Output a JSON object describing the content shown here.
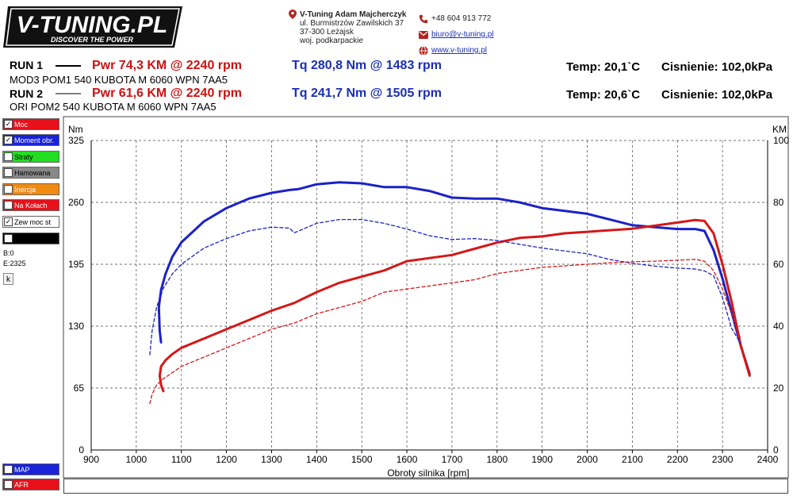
{
  "header": {
    "logo_text": "V-TUNING.PL",
    "logo_tagline": "DISCOVER THE POWER",
    "company": "V-Tuning Adam Majcherczyk",
    "address_lines": [
      "ul. Burmistrzów Zawilskich 37",
      "37-300 Leżajsk",
      "woj. podkarpackie"
    ],
    "phone": "+48 604 913 772",
    "email": "biuro@v-tuning.pl",
    "website": "www.v-tuning.pl"
  },
  "runs": [
    {
      "label": "RUN 1",
      "desc": "MOD3 POM1 540 KUBOTA M 6060 WPN 7AA5",
      "pwr": "Pwr  74,3 KM @ 2240 rpm",
      "tq": "Tq 280,8 Nm @ 1483 rpm",
      "temp": "Temp: 20,1`C",
      "pressure": "Cisnienie: 102,0kPa"
    },
    {
      "label": "RUN 2",
      "desc": "ORI POM2 540 KUBOTA M 6060 WPN 7AA5",
      "pwr": "Pwr  61,6 KM @ 2240 rpm",
      "tq": "Tq 241,7 Nm @ 1505 rpm",
      "temp": "Temp: 20,6`C",
      "pressure": "Cisnienie: 102,0kPa"
    }
  ],
  "sidebar": {
    "items": [
      {
        "label": "Moc",
        "checked": true,
        "color": "#e8101a"
      },
      {
        "label": "Moment obr.",
        "checked": true,
        "color": "#1a22d8"
      },
      {
        "label": "Straty",
        "checked": false,
        "color": "#22dd22"
      },
      {
        "label": "Hamowana",
        "checked": false,
        "color": "#888888"
      },
      {
        "label": "Inercja",
        "checked": false,
        "color": "#f08a10"
      },
      {
        "label": "Na Kołach",
        "checked": false,
        "color": "#e8101a"
      },
      {
        "label": "Zew moc st",
        "checked": true,
        "color": "#ffffff"
      },
      {
        "label": "",
        "checked": false,
        "color": "#000000"
      }
    ],
    "b_value": "B:0",
    "e_value": "E:2325",
    "k_button": "k",
    "bottom_items": [
      {
        "label": "MAP",
        "checked": false,
        "color": "#1a22d8"
      },
      {
        "label": "AFR",
        "checked": false,
        "color": "#e8101a"
      }
    ]
  },
  "chart_data": {
    "type": "line",
    "xlabel": "Obroty silnika [rpm]",
    "ylabel_left": "Nm",
    "ylabel_right": "KM",
    "xlim": [
      900,
      2400
    ],
    "ylim_left": [
      0,
      325
    ],
    "ylim_right": [
      0,
      100
    ],
    "x_ticks": [
      900,
      1000,
      1100,
      1200,
      1300,
      1400,
      1500,
      1600,
      1700,
      1800,
      1900,
      2000,
      2100,
      2200,
      2300,
      2400
    ],
    "y_ticks_left": [
      0,
      65,
      130,
      195,
      260,
      325
    ],
    "y_ticks_right": [
      0,
      20,
      40,
      60,
      80,
      100
    ],
    "grid": true,
    "colors": {
      "torque": "#1a22c8",
      "power": "#d41818"
    },
    "series": [
      {
        "axis": "left",
        "color": "#1a22c8",
        "style": "solid",
        "width": 3,
        "x": [
          1055,
          1052,
          1050,
          1055,
          1065,
          1080,
          1100,
          1150,
          1200,
          1250,
          1300,
          1340,
          1360,
          1400,
          1450,
          1500,
          1550,
          1600,
          1650,
          1700,
          1750,
          1800,
          1850,
          1900,
          1950,
          2000,
          2050,
          2100,
          2150,
          2200,
          2240,
          2260,
          2280,
          2300,
          2320,
          2340,
          2360
        ],
        "y": [
          113,
          125,
          150,
          168,
          185,
          203,
          218,
          240,
          254,
          264,
          270,
          273,
          274,
          279,
          281,
          280,
          276,
          276,
          272,
          265,
          264,
          264,
          260,
          254,
          251,
          248,
          242,
          236,
          234,
          232,
          232,
          230,
          210,
          180,
          145,
          110,
          80
        ]
      },
      {
        "axis": "right",
        "color": "#d41818",
        "style": "solid",
        "width": 3,
        "x": [
          1060,
          1055,
          1052,
          1055,
          1065,
          1080,
          1100,
          1150,
          1200,
          1250,
          1300,
          1350,
          1400,
          1450,
          1500,
          1550,
          1600,
          1650,
          1700,
          1750,
          1800,
          1850,
          1900,
          1950,
          2000,
          2050,
          2100,
          2150,
          2200,
          2240,
          2260,
          2280,
          2300,
          2320,
          2340,
          2360
        ],
        "y": [
          19,
          21,
          24,
          27,
          29,
          31,
          33,
          36,
          39,
          42,
          45,
          47.5,
          51,
          54,
          56,
          58,
          61,
          62,
          63,
          65,
          67,
          68.5,
          69,
          70,
          70.5,
          71,
          71.5,
          72.5,
          73.5,
          74.3,
          74,
          70,
          60,
          48,
          34,
          24
        ]
      },
      {
        "axis": "left",
        "color": "#1a22c8",
        "style": "dashed",
        "width": 1.3,
        "x": [
          1030,
          1035,
          1045,
          1060,
          1080,
          1100,
          1150,
          1200,
          1250,
          1300,
          1340,
          1350,
          1400,
          1450,
          1500,
          1550,
          1600,
          1650,
          1700,
          1750,
          1800,
          1850,
          1900,
          1950,
          2000,
          2050,
          2100,
          2150,
          2200,
          2240,
          2260,
          2280,
          2300,
          2320,
          2340
        ],
        "y": [
          100,
          125,
          150,
          170,
          185,
          195,
          212,
          222,
          230,
          234,
          233,
          228,
          238,
          242,
          242,
          238,
          232,
          225,
          221,
          222,
          220,
          216,
          212,
          209,
          206,
          200,
          196,
          193,
          191,
          190,
          188,
          183,
          160,
          128,
          112
        ]
      },
      {
        "axis": "right",
        "color": "#d41818",
        "style": "dashed",
        "width": 1.3,
        "x": [
          1030,
          1035,
          1045,
          1060,
          1080,
          1100,
          1150,
          1200,
          1250,
          1300,
          1350,
          1400,
          1450,
          1500,
          1550,
          1600,
          1650,
          1700,
          1750,
          1800,
          1850,
          1900,
          1950,
          2000,
          2050,
          2100,
          2150,
          2200,
          2240,
          2260,
          2280,
          2300,
          2320,
          2340
        ],
        "y": [
          15,
          18,
          21,
          23,
          25,
          27,
          30,
          33,
          36,
          39,
          41,
          44,
          46,
          48,
          51,
          52,
          53,
          54,
          55,
          57,
          58,
          59,
          59.5,
          60,
          60.5,
          60.8,
          61,
          61.3,
          61.6,
          61,
          58,
          52,
          44,
          36
        ]
      }
    ]
  }
}
